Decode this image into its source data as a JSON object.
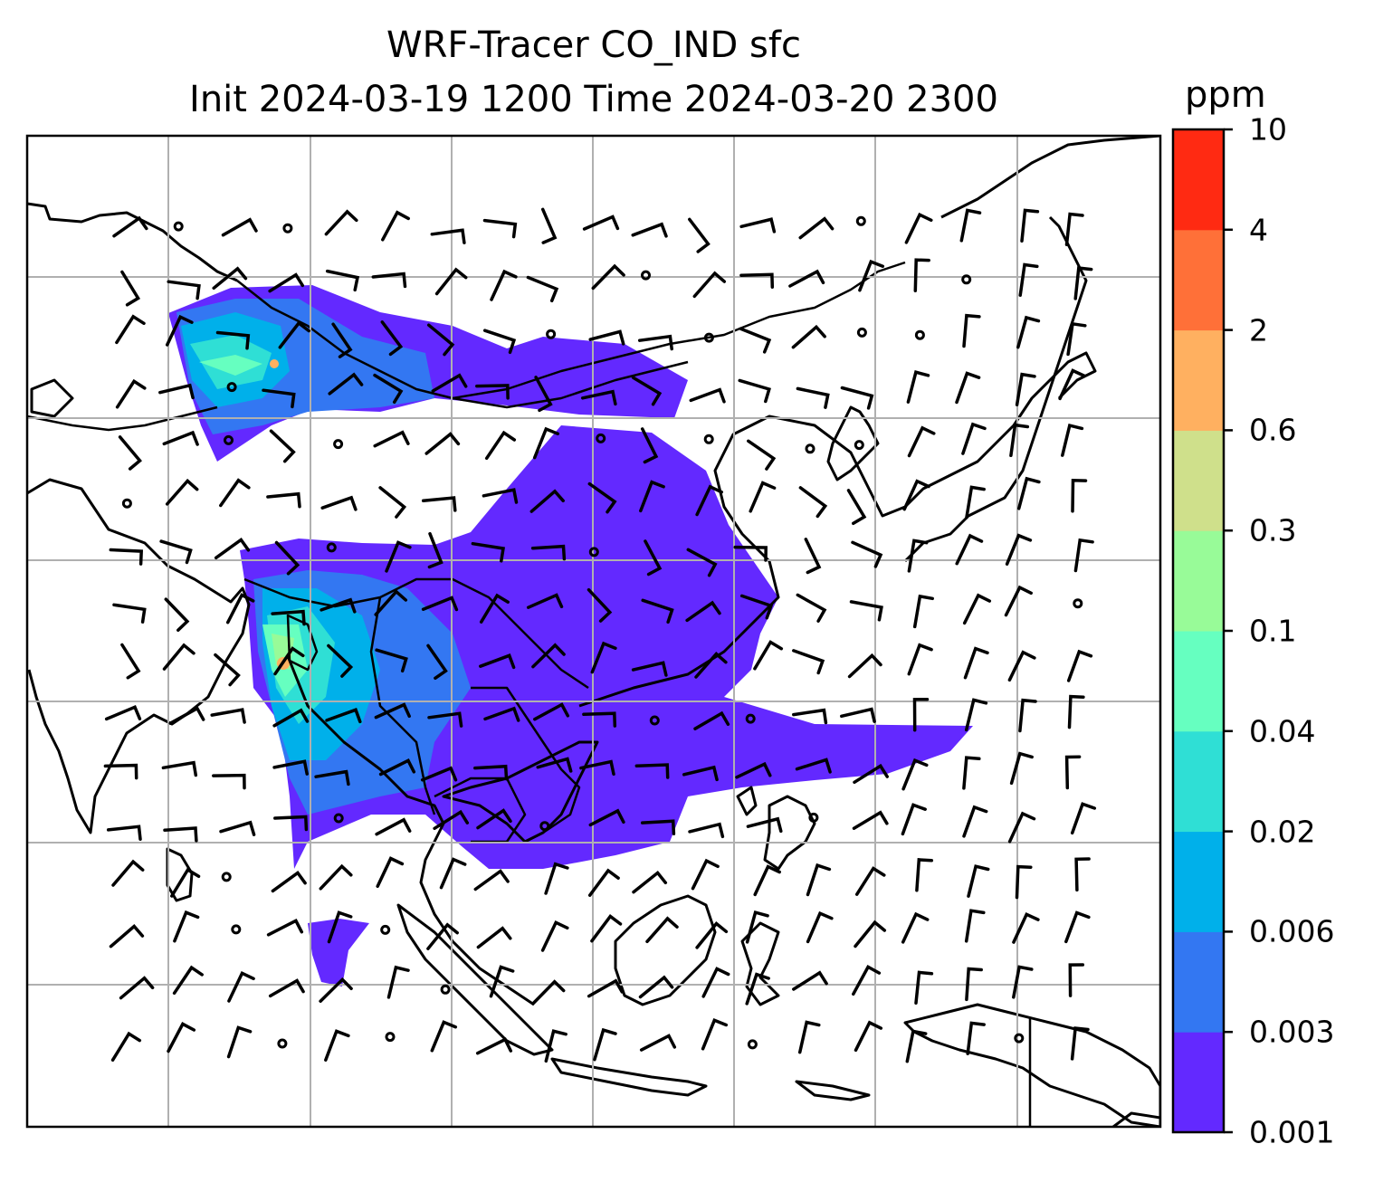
{
  "title": {
    "line1": "WRF-Tracer CO_IND sfc",
    "line2": "Init 2024-03-19 1200 Time 2024-03-20 2300"
  },
  "colorbar": {
    "unit": "ppm",
    "ticks": [
      "0.001",
      "0.003",
      "0.006",
      "0.02",
      "0.04",
      "0.1",
      "0.3",
      "0.6",
      "2",
      "4",
      "10"
    ],
    "colors": [
      "#6329ff",
      "#3377f2",
      "#00b0ea",
      "#2fdfd5",
      "#66ffc0",
      "#98fb98",
      "#cfe08b",
      "#ffb060",
      "#ff7038",
      "#ff2a12"
    ]
  },
  "map": {
    "overlays": [
      "coastlines",
      "country-borders",
      "lat-lon-gridlines",
      "wind-barbs",
      "calm-circles"
    ],
    "shading_colors": {
      "low": "#6329ff",
      "mid": "#3377f2",
      "cyan": "#00b0ea",
      "teal": "#2fdfd5",
      "mint": "#66ffc0",
      "green": "#98fb98",
      "orange": "#ffb060"
    }
  }
}
